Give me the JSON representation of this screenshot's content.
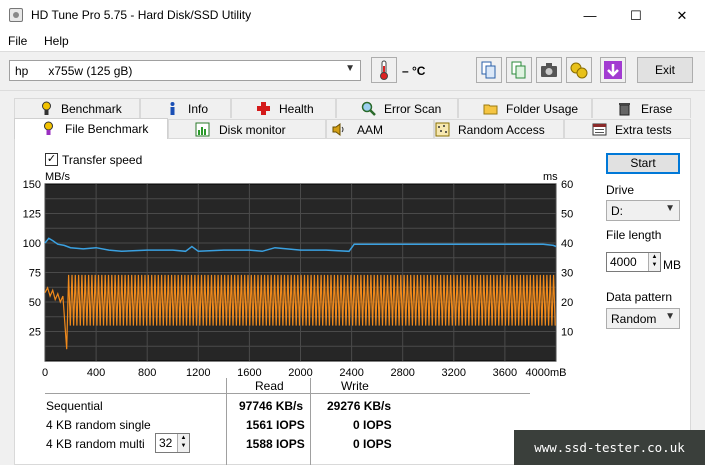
{
  "window": {
    "title": "HD Tune Pro 5.75 - Hard Disk/SSD Utility",
    "minimize_glyph": "—",
    "maximize_glyph": "☐",
    "close_glyph": "✕"
  },
  "menu": {
    "file": "File",
    "help": "Help"
  },
  "toolbar": {
    "drive_value": "hp      x755w (125 gB)",
    "temperature": "– °C",
    "exit_label": "Exit"
  },
  "tabs_top": [
    {
      "label": "Benchmark",
      "icon": "benchmark-icon"
    },
    {
      "label": "Info",
      "icon": "info-icon"
    },
    {
      "label": "Health",
      "icon": "health-icon"
    },
    {
      "label": "Error Scan",
      "icon": "error-scan-icon"
    },
    {
      "label": "Folder Usage",
      "icon": "folder-icon"
    },
    {
      "label": "Erase",
      "icon": "trash-icon"
    }
  ],
  "tabs_bottom": [
    {
      "label": "File Benchmark",
      "icon": "file-benchmark-icon",
      "active": true
    },
    {
      "label": "Disk monitor",
      "icon": "disk-monitor-icon"
    },
    {
      "label": "AAM",
      "icon": "speaker-icon"
    },
    {
      "label": "Random Access",
      "icon": "random-access-icon"
    },
    {
      "label": "Extra tests",
      "icon": "extra-tests-icon"
    }
  ],
  "options": {
    "transfer_speed_label": "Transfer speed",
    "transfer_speed_checked": true
  },
  "chart_data": {
    "type": "line",
    "y_left_label": "MB/s",
    "y_right_label": "ms",
    "y_left_ticks": [
      25,
      50,
      75,
      100,
      125,
      150
    ],
    "y_right_ticks": [
      10,
      20,
      30,
      40,
      50,
      60
    ],
    "y_left_range": [
      0,
      150
    ],
    "y_right_range": [
      0,
      60
    ],
    "x_ticks": [
      "0",
      "400",
      "800",
      "1200",
      "1600",
      "2000",
      "2400",
      "2800",
      "3200",
      "3600",
      "4000mB"
    ],
    "x_range": [
      0,
      4000
    ],
    "grid": true,
    "background": "#262626",
    "series": [
      {
        "color": "#3aa0e0",
        "description_points_x": [
          0,
          30,
          60,
          100,
          150,
          200,
          300,
          400,
          500,
          600,
          800,
          1000,
          1100,
          1150,
          1200,
          1400,
          1600,
          1700,
          1800,
          2000,
          2200,
          2380,
          2420,
          2600,
          2800,
          3200,
          3600,
          3900,
          3980,
          4000
        ],
        "values": [
          100,
          104,
          102,
          99,
          98,
          96,
          95,
          96,
          94,
          93,
          94,
          94,
          93,
          97,
          93,
          94,
          94,
          93,
          96,
          94,
          94,
          93,
          99,
          99,
          99,
          99,
          99,
          99,
          98,
          97
        ]
      },
      {
        "color": "#f08a1c",
        "pattern": "write_oscillation",
        "high_value": 73,
        "low_value": 30,
        "early_values": [
          58,
          62,
          55,
          60,
          52,
          57,
          50,
          55
        ]
      }
    ]
  },
  "results": {
    "col_read": "Read",
    "col_write": "Write",
    "rows": [
      {
        "label": "Sequential",
        "read": "97746 KB/s",
        "write": "29276 KB/s"
      },
      {
        "label": "4 KB random single",
        "read": "1561 IOPS",
        "write": "0 IOPS"
      },
      {
        "label": "4 KB random multi",
        "read": "1588 IOPS",
        "write": "0 IOPS",
        "queue": "32"
      }
    ]
  },
  "side": {
    "start_label": "Start",
    "drive_label": "Drive",
    "drive_value": "D:",
    "file_length_label": "File length",
    "file_length_value": "4000",
    "file_length_unit": "MB",
    "data_pattern_label": "Data pattern",
    "data_pattern_value": "Random"
  },
  "watermark": "www.ssd-tester.co.uk"
}
